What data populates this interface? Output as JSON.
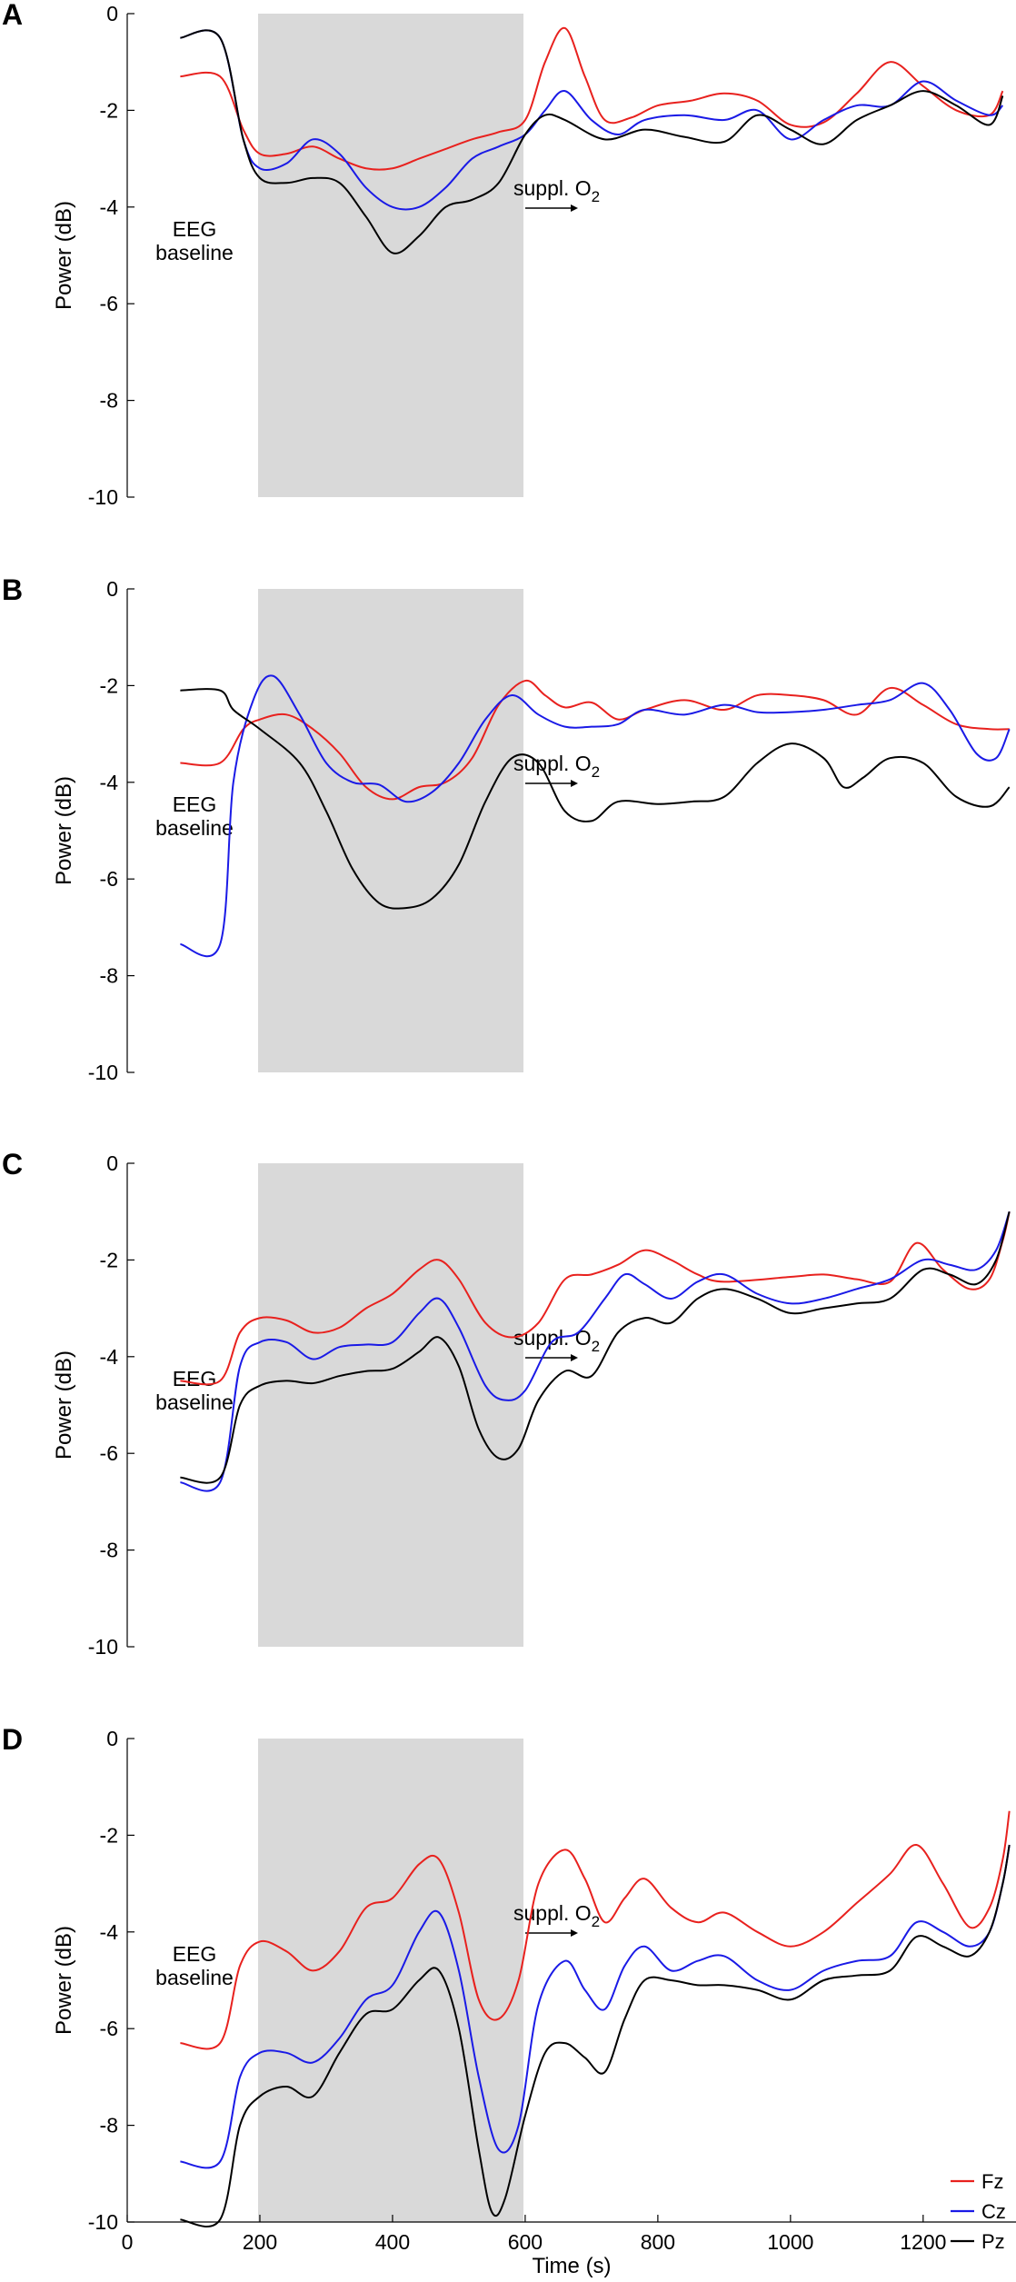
{
  "figure": {
    "xlabel": "Time (s)",
    "x_ticks": [
      0,
      200,
      400,
      600,
      800,
      1000,
      1200
    ],
    "legend": [
      "Fz",
      "Cz",
      "Pz"
    ],
    "colors": {
      "Fz": "#e8211e",
      "Cz": "#1a1ae6",
      "Pz": "#000000",
      "shade": "#d9d9d9"
    }
  },
  "chart_data": [
    {
      "type": "line",
      "panel_label": "A",
      "ylabel": "Power (dB)",
      "ylim": [
        -10,
        0
      ],
      "xlim": [
        0,
        1340
      ],
      "y_ticks": [
        0,
        -2,
        -4,
        -6,
        -8,
        -10
      ],
      "shaded_region": [
        200,
        600
      ],
      "annotations": {
        "baseline_line1": "EEG",
        "baseline_line2": "baseline",
        "o2_text": "suppl. O",
        "o2_sub": "2"
      },
      "series": [
        {
          "name": "Fz",
          "x": [
            80,
            140,
            175,
            200,
            240,
            280,
            320,
            360,
            400,
            440,
            480,
            520,
            560,
            600,
            630,
            660,
            690,
            720,
            760,
            800,
            850,
            900,
            950,
            1000,
            1050,
            1100,
            1150,
            1200,
            1250,
            1300,
            1320
          ],
          "y": [
            -1.3,
            -1.3,
            -2.4,
            -2.9,
            -2.9,
            -2.75,
            -3.0,
            -3.2,
            -3.2,
            -3.0,
            -2.8,
            -2.6,
            -2.45,
            -2.2,
            -1.0,
            -0.3,
            -1.3,
            -2.2,
            -2.15,
            -1.9,
            -1.8,
            -1.65,
            -1.8,
            -2.3,
            -2.25,
            -1.65,
            -1.0,
            -1.5,
            -2.0,
            -2.1,
            -1.6
          ]
        },
        {
          "name": "Cz",
          "x": [
            80,
            140,
            175,
            200,
            240,
            280,
            320,
            360,
            400,
            440,
            480,
            520,
            560,
            600,
            630,
            660,
            700,
            740,
            780,
            840,
            900,
            950,
            1000,
            1050,
            1100,
            1150,
            1200,
            1250,
            1300,
            1320
          ],
          "y": [
            -0.5,
            -0.5,
            -2.6,
            -3.2,
            -3.1,
            -2.6,
            -2.9,
            -3.6,
            -4.0,
            -4.0,
            -3.6,
            -3.0,
            -2.75,
            -2.5,
            -2.0,
            -1.6,
            -2.2,
            -2.5,
            -2.2,
            -2.1,
            -2.2,
            -2.0,
            -2.6,
            -2.2,
            -1.9,
            -1.9,
            -1.4,
            -1.8,
            -2.1,
            -1.9
          ]
        },
        {
          "name": "Pz",
          "x": [
            80,
            140,
            175,
            200,
            240,
            280,
            320,
            360,
            400,
            440,
            480,
            520,
            560,
            600,
            630,
            660,
            720,
            780,
            840,
            900,
            950,
            1000,
            1050,
            1100,
            1150,
            1200,
            1250,
            1300,
            1320
          ],
          "y": [
            -0.5,
            -0.5,
            -2.6,
            -3.4,
            -3.5,
            -3.4,
            -3.5,
            -4.2,
            -4.95,
            -4.6,
            -4.0,
            -3.85,
            -3.5,
            -2.5,
            -2.1,
            -2.2,
            -2.6,
            -2.4,
            -2.55,
            -2.65,
            -2.1,
            -2.4,
            -2.7,
            -2.2,
            -1.9,
            -1.6,
            -1.9,
            -2.3,
            -1.7
          ]
        }
      ]
    },
    {
      "type": "line",
      "panel_label": "B",
      "ylabel": "Power (dB)",
      "ylim": [
        -10,
        0
      ],
      "xlim": [
        0,
        1340
      ],
      "y_ticks": [
        0,
        -2,
        -4,
        -6,
        -8,
        -10
      ],
      "shaded_region": [
        200,
        600
      ],
      "annotations": {
        "baseline_line1": "EEG",
        "baseline_line2": "baseline",
        "o2_text": "suppl. O",
        "o2_sub": "2"
      },
      "series": [
        {
          "name": "Fz",
          "x": [
            80,
            140,
            175,
            200,
            240,
            280,
            320,
            360,
            400,
            440,
            480,
            520,
            560,
            600,
            630,
            660,
            700,
            740,
            780,
            840,
            900,
            950,
            1000,
            1050,
            1100,
            1150,
            1200,
            1250,
            1300,
            1330
          ],
          "y": [
            -3.6,
            -3.6,
            -2.9,
            -2.7,
            -2.6,
            -2.9,
            -3.4,
            -4.1,
            -4.35,
            -4.1,
            -4.0,
            -3.5,
            -2.4,
            -1.9,
            -2.2,
            -2.45,
            -2.35,
            -2.7,
            -2.5,
            -2.3,
            -2.5,
            -2.2,
            -2.2,
            -2.3,
            -2.6,
            -2.05,
            -2.4,
            -2.8,
            -2.9,
            -2.9
          ]
        },
        {
          "name": "Cz",
          "x": [
            80,
            140,
            160,
            190,
            220,
            260,
            300,
            340,
            380,
            420,
            460,
            500,
            540,
            580,
            620,
            660,
            700,
            740,
            780,
            840,
            900,
            950,
            1000,
            1050,
            1100,
            1150,
            1200,
            1240,
            1280,
            1310,
            1330
          ],
          "y": [
            -7.35,
            -7.35,
            -4.0,
            -2.3,
            -1.8,
            -2.6,
            -3.6,
            -4.0,
            -4.05,
            -4.4,
            -4.2,
            -3.6,
            -2.7,
            -2.2,
            -2.6,
            -2.85,
            -2.85,
            -2.8,
            -2.5,
            -2.6,
            -2.4,
            -2.55,
            -2.55,
            -2.5,
            -2.4,
            -2.3,
            -1.95,
            -2.5,
            -3.4,
            -3.5,
            -2.9
          ]
        },
        {
          "name": "Pz",
          "x": [
            80,
            140,
            160,
            200,
            260,
            300,
            340,
            380,
            420,
            460,
            500,
            540,
            580,
            620,
            660,
            700,
            740,
            800,
            850,
            900,
            950,
            1000,
            1050,
            1080,
            1110,
            1150,
            1200,
            1250,
            1300,
            1330
          ],
          "y": [
            -2.1,
            -2.1,
            -2.5,
            -2.9,
            -3.6,
            -4.6,
            -5.8,
            -6.5,
            -6.6,
            -6.4,
            -5.7,
            -4.4,
            -3.5,
            -3.6,
            -4.6,
            -4.8,
            -4.4,
            -4.45,
            -4.4,
            -4.3,
            -3.6,
            -3.2,
            -3.5,
            -4.1,
            -3.9,
            -3.5,
            -3.6,
            -4.3,
            -4.5,
            -4.1
          ]
        }
      ]
    },
    {
      "type": "line",
      "panel_label": "C",
      "ylabel": "Power (dB)",
      "ylim": [
        -10,
        0
      ],
      "xlim": [
        0,
        1340
      ],
      "y_ticks": [
        0,
        -2,
        -4,
        -6,
        -8,
        -10
      ],
      "shaded_region": [
        200,
        600
      ],
      "annotations": {
        "baseline_line1": "EEG",
        "baseline_line2": "baseline",
        "o2_text": "suppl. O",
        "o2_sub": "2"
      },
      "series": [
        {
          "name": "Fz",
          "x": [
            80,
            140,
            170,
            200,
            240,
            280,
            320,
            360,
            400,
            440,
            470,
            500,
            540,
            580,
            620,
            660,
            700,
            740,
            780,
            820,
            860,
            900,
            1000,
            1050,
            1100,
            1150,
            1190,
            1230,
            1270,
            1300,
            1320,
            1330
          ],
          "y": [
            -4.5,
            -4.5,
            -3.5,
            -3.2,
            -3.25,
            -3.5,
            -3.4,
            -3.0,
            -2.7,
            -2.2,
            -2.0,
            -2.4,
            -3.3,
            -3.6,
            -3.3,
            -2.4,
            -2.3,
            -2.1,
            -1.8,
            -2.0,
            -2.3,
            -2.45,
            -2.35,
            -2.3,
            -2.4,
            -2.45,
            -1.65,
            -2.2,
            -2.6,
            -2.4,
            -1.6,
            -1.0
          ]
        },
        {
          "name": "Cz",
          "x": [
            80,
            140,
            170,
            200,
            240,
            280,
            320,
            360,
            400,
            440,
            470,
            500,
            540,
            570,
            600,
            640,
            680,
            720,
            750,
            780,
            820,
            860,
            900,
            950,
            1000,
            1050,
            1100,
            1150,
            1200,
            1240,
            1280,
            1310,
            1330
          ],
          "y": [
            -6.6,
            -6.6,
            -4.2,
            -3.7,
            -3.7,
            -4.05,
            -3.8,
            -3.75,
            -3.7,
            -3.1,
            -2.8,
            -3.4,
            -4.6,
            -4.9,
            -4.7,
            -3.7,
            -3.5,
            -2.8,
            -2.3,
            -2.5,
            -2.8,
            -2.45,
            -2.3,
            -2.7,
            -2.9,
            -2.8,
            -2.6,
            -2.4,
            -2.0,
            -2.1,
            -2.2,
            -1.8,
            -1.0
          ]
        },
        {
          "name": "Pz",
          "x": [
            80,
            140,
            170,
            200,
            240,
            280,
            320,
            360,
            400,
            440,
            470,
            500,
            530,
            560,
            590,
            620,
            660,
            700,
            740,
            780,
            820,
            860,
            900,
            950,
            1000,
            1050,
            1100,
            1150,
            1200,
            1240,
            1280,
            1310,
            1330
          ],
          "y": [
            -6.5,
            -6.5,
            -5.0,
            -4.6,
            -4.5,
            -4.55,
            -4.4,
            -4.3,
            -4.25,
            -3.9,
            -3.6,
            -4.2,
            -5.5,
            -6.1,
            -5.9,
            -4.9,
            -4.3,
            -4.4,
            -3.5,
            -3.2,
            -3.3,
            -2.8,
            -2.6,
            -2.8,
            -3.1,
            -3.0,
            -2.9,
            -2.8,
            -2.2,
            -2.3,
            -2.5,
            -2.0,
            -1.0
          ]
        }
      ]
    },
    {
      "type": "line",
      "panel_label": "D",
      "ylabel": "Power (dB)",
      "ylim": [
        -10,
        0
      ],
      "xlim": [
        0,
        1340
      ],
      "y_ticks": [
        0,
        -2,
        -4,
        -6,
        -8,
        -10
      ],
      "shaded_region": [
        200,
        600
      ],
      "annotations": {
        "baseline_line1": "EEG",
        "baseline_line2": "baseline",
        "o2_text": "suppl. O",
        "o2_sub": "2"
      },
      "series": [
        {
          "name": "Fz",
          "x": [
            80,
            140,
            170,
            200,
            240,
            280,
            320,
            360,
            400,
            440,
            470,
            500,
            530,
            560,
            590,
            620,
            660,
            690,
            720,
            750,
            780,
            820,
            860,
            900,
            950,
            1000,
            1050,
            1100,
            1150,
            1190,
            1230,
            1270,
            1300,
            1320,
            1330
          ],
          "y": [
            -6.3,
            -6.3,
            -4.7,
            -4.2,
            -4.4,
            -4.8,
            -4.4,
            -3.5,
            -3.3,
            -2.6,
            -2.5,
            -3.6,
            -5.4,
            -5.8,
            -5.0,
            -3.0,
            -2.3,
            -2.9,
            -3.8,
            -3.3,
            -2.9,
            -3.5,
            -3.8,
            -3.6,
            -4.0,
            -4.3,
            -4.0,
            -3.4,
            -2.8,
            -2.2,
            -3.0,
            -3.9,
            -3.5,
            -2.5,
            -1.5
          ]
        },
        {
          "name": "Cz",
          "x": [
            80,
            140,
            170,
            200,
            240,
            280,
            320,
            360,
            400,
            440,
            470,
            500,
            530,
            560,
            590,
            620,
            660,
            690,
            720,
            750,
            780,
            820,
            860,
            900,
            950,
            1000,
            1050,
            1100,
            1150,
            1190,
            1230,
            1270,
            1300,
            1320,
            1330
          ],
          "y": [
            -8.75,
            -8.75,
            -7.0,
            -6.5,
            -6.5,
            -6.7,
            -6.2,
            -5.4,
            -5.1,
            -4.0,
            -3.6,
            -4.8,
            -7.0,
            -8.5,
            -8.0,
            -5.5,
            -4.6,
            -5.2,
            -5.6,
            -4.7,
            -4.3,
            -4.8,
            -4.6,
            -4.5,
            -5.0,
            -5.2,
            -4.8,
            -4.6,
            -4.5,
            -3.8,
            -4.0,
            -4.3,
            -4.0,
            -3.0,
            -2.2
          ]
        },
        {
          "name": "Pz",
          "x": [
            80,
            140,
            170,
            200,
            240,
            280,
            320,
            360,
            400,
            440,
            470,
            500,
            530,
            550,
            570,
            600,
            630,
            660,
            690,
            720,
            750,
            780,
            820,
            860,
            900,
            950,
            1000,
            1050,
            1100,
            1150,
            1190,
            1230,
            1270,
            1300,
            1320,
            1330
          ],
          "y": [
            -9.95,
            -9.95,
            -8.0,
            -7.4,
            -7.2,
            -7.4,
            -6.5,
            -5.7,
            -5.6,
            -5.0,
            -4.8,
            -6.0,
            -8.5,
            -9.8,
            -9.5,
            -7.8,
            -6.5,
            -6.3,
            -6.6,
            -6.9,
            -5.8,
            -5.0,
            -5.0,
            -5.1,
            -5.1,
            -5.2,
            -5.4,
            -5.0,
            -4.9,
            -4.8,
            -4.1,
            -4.3,
            -4.5,
            -4.0,
            -3.0,
            -2.2
          ]
        }
      ]
    }
  ]
}
